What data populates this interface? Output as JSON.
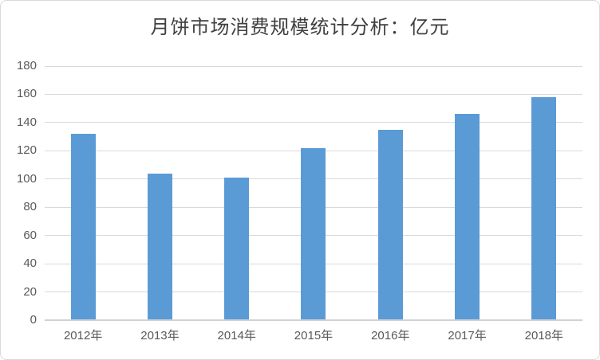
{
  "title": "月饼市场消费规模统计分析：亿元",
  "chart_data": {
    "type": "bar",
    "title": "月饼市场消费规模统计分析：亿元",
    "categories": [
      "2012年",
      "2013年",
      "2014年",
      "2015年",
      "2016年",
      "2017年",
      "2018年"
    ],
    "values": [
      132,
      104,
      101,
      122,
      135,
      146,
      158
    ],
    "xlabel": "",
    "ylabel": "",
    "ylim": [
      0,
      180
    ],
    "ytick_step": 20,
    "yticks": [
      0,
      20,
      40,
      60,
      80,
      100,
      120,
      140,
      160,
      180
    ],
    "grid": true,
    "legend_position": "none",
    "bar_color": "#5b9bd5"
  },
  "colors": {
    "bar": "#5b9bd5",
    "gridline": "#d9d9d9",
    "axis_line": "#d2d2d2",
    "tick_text": "#595959",
    "title_text": "#404040",
    "frame_border": "#d9d9d9",
    "background": "#ffffff"
  }
}
